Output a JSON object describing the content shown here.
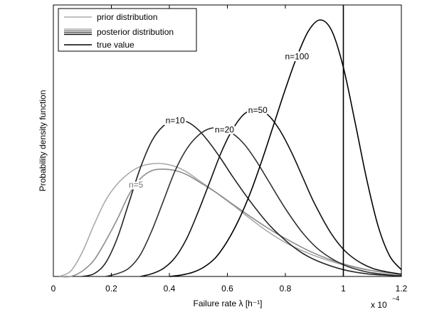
{
  "chart_data": {
    "type": "line",
    "xlabel": "Failure rate  λ [h⁻¹]",
    "ylabel": "Probability density function",
    "x_multiplier": "x 10",
    "x_multiplier_exp": "−4",
    "xlim": [
      0,
      1.2
    ],
    "ylim": [
      0,
      1
    ],
    "xticks": [
      "0",
      "0.2",
      "0.4",
      "0.6",
      "0.8",
      "1",
      "1.2"
    ],
    "grid": false,
    "legend": {
      "placement": "top-left",
      "entries": [
        {
          "label": "prior distribution",
          "style": "prior"
        },
        {
          "label": "posterior distribution",
          "style": "posterior"
        },
        {
          "label": "true value",
          "style": "true"
        }
      ]
    },
    "true_value": 1.0,
    "series": [
      {
        "name": "prior distribution",
        "label": "",
        "color": "#aaaaaa",
        "x": [
          0.02,
          0.06,
          0.1,
          0.14,
          0.18,
          0.22,
          0.26,
          0.3,
          0.34,
          0.38,
          0.42,
          0.46,
          0.5,
          0.56,
          0.62,
          0.68,
          0.74,
          0.8,
          0.88,
          0.96,
          1.04,
          1.12,
          1.2
        ],
        "y": [
          0.0,
          0.02,
          0.09,
          0.19,
          0.28,
          0.34,
          0.38,
          0.405,
          0.415,
          0.415,
          0.405,
          0.385,
          0.355,
          0.31,
          0.262,
          0.212,
          0.165,
          0.125,
          0.085,
          0.055,
          0.033,
          0.018,
          0.008
        ]
      },
      {
        "name": "n=5",
        "label": "n=5",
        "color": "#8c8c8c",
        "x": [
          0.02,
          0.06,
          0.1,
          0.14,
          0.18,
          0.22,
          0.26,
          0.3,
          0.34,
          0.38,
          0.42,
          0.46,
          0.5,
          0.56,
          0.62,
          0.68,
          0.74,
          0.8,
          0.88,
          0.96,
          1.04,
          1.12,
          1.2
        ],
        "y": [
          0.0,
          0.0,
          0.02,
          0.06,
          0.13,
          0.21,
          0.3,
          0.36,
          0.39,
          0.395,
          0.39,
          0.375,
          0.35,
          0.31,
          0.265,
          0.22,
          0.178,
          0.14,
          0.095,
          0.06,
          0.035,
          0.018,
          0.008
        ]
      },
      {
        "name": "n=10",
        "label": "n=10",
        "color": "#222222",
        "x": [
          0.1,
          0.14,
          0.18,
          0.22,
          0.26,
          0.3,
          0.34,
          0.38,
          0.42,
          0.46,
          0.5,
          0.54,
          0.58,
          0.62,
          0.68,
          0.74,
          0.8,
          0.86,
          0.92,
          1.0,
          1.08,
          1.16,
          1.2
        ],
        "y": [
          0.0,
          0.01,
          0.05,
          0.14,
          0.27,
          0.4,
          0.5,
          0.555,
          0.575,
          0.57,
          0.54,
          0.49,
          0.43,
          0.365,
          0.275,
          0.195,
          0.133,
          0.085,
          0.053,
          0.025,
          0.01,
          0.004,
          0.002
        ]
      },
      {
        "name": "n=20",
        "label": "n=20",
        "color": "#333333",
        "x": [
          0.18,
          0.22,
          0.26,
          0.3,
          0.34,
          0.38,
          0.42,
          0.46,
          0.5,
          0.54,
          0.58,
          0.62,
          0.66,
          0.7,
          0.74,
          0.8,
          0.86,
          0.92,
          1.0,
          1.08,
          1.16,
          1.2
        ],
        "y": [
          0.0,
          0.01,
          0.03,
          0.08,
          0.17,
          0.28,
          0.39,
          0.47,
          0.52,
          0.545,
          0.545,
          0.525,
          0.485,
          0.425,
          0.355,
          0.25,
          0.16,
          0.095,
          0.043,
          0.017,
          0.006,
          0.003
        ]
      },
      {
        "name": "n=50",
        "label": "n=50",
        "color": "#111111",
        "x": [
          0.3,
          0.34,
          0.38,
          0.42,
          0.46,
          0.5,
          0.54,
          0.58,
          0.62,
          0.66,
          0.7,
          0.74,
          0.78,
          0.82,
          0.86,
          0.9,
          0.96,
          1.02,
          1.1,
          1.2
        ],
        "y": [
          0.0,
          0.01,
          0.03,
          0.07,
          0.14,
          0.24,
          0.35,
          0.46,
          0.545,
          0.6,
          0.615,
          0.595,
          0.54,
          0.46,
          0.365,
          0.27,
          0.155,
          0.08,
          0.03,
          0.008
        ]
      },
      {
        "name": "n=100",
        "label": "n=100",
        "color": "#000000",
        "x": [
          0.4,
          0.44,
          0.48,
          0.52,
          0.56,
          0.6,
          0.64,
          0.68,
          0.72,
          0.76,
          0.8,
          0.84,
          0.88,
          0.92,
          0.96,
          1.0,
          1.04,
          1.08,
          1.12,
          1.16,
          1.2
        ],
        "y": [
          0.0,
          0.005,
          0.015,
          0.035,
          0.07,
          0.13,
          0.21,
          0.31,
          0.43,
          0.56,
          0.69,
          0.81,
          0.905,
          0.945,
          0.905,
          0.77,
          0.57,
          0.36,
          0.185,
          0.075,
          0.025
        ]
      }
    ]
  }
}
